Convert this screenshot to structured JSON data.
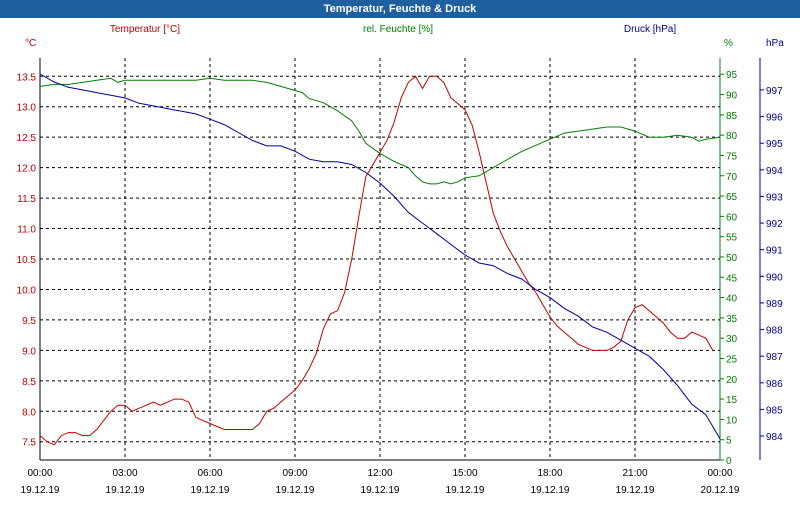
{
  "window": {
    "title": "Temperatur, Feuchte & Druck"
  },
  "colors": {
    "title_bar": "#1f5fa0",
    "temperature": "#c00000",
    "humidity": "#008000",
    "pressure": "#00009c",
    "grid": "#000000",
    "background": "#ffffff"
  },
  "chart_data": {
    "type": "line",
    "title": "Temperatur, Feuchte & Druck",
    "grid": true,
    "x_ticks": [
      {
        "time": "00:00",
        "date": "19.12.19"
      },
      {
        "time": "03:00",
        "date": "19.12.19"
      },
      {
        "time": "06:00",
        "date": "19.12.19"
      },
      {
        "time": "09:00",
        "date": "19.12.19"
      },
      {
        "time": "12:00",
        "date": "19.12.19"
      },
      {
        "time": "15:00",
        "date": "19.12.19"
      },
      {
        "time": "18:00",
        "date": "19.12.19"
      },
      {
        "time": "21:00",
        "date": "19.12.19"
      },
      {
        "time": "00:00",
        "date": "20.12.19"
      }
    ],
    "x_range": [
      "19.12.19 00:00",
      "20.12.19 00:00"
    ],
    "axes": {
      "temperature": {
        "label": "Temperatur [°C]",
        "unit": "°C",
        "range": [
          7.2,
          13.8
        ],
        "ticks": [
          "7.5",
          "8.0",
          "8.5",
          "9.0",
          "9.5",
          "10.0",
          "10.5",
          "11.0",
          "11.5",
          "12.0",
          "12.5",
          "13.0",
          "13.5"
        ]
      },
      "humidity": {
        "label": "rel. Feuchte [%]",
        "unit": "%",
        "range": [
          0,
          99
        ],
        "ticks": [
          "0",
          "5",
          "10",
          "15",
          "20",
          "25",
          "30",
          "35",
          "40",
          "45",
          "50",
          "55",
          "60",
          "65",
          "70",
          "75",
          "80",
          "85",
          "90",
          "95"
        ]
      },
      "pressure": {
        "label": "Druck [hPa]",
        "unit": "hPa",
        "range": [
          983.1,
          998.2
        ],
        "ticks": [
          "984",
          "985",
          "986",
          "987",
          "988",
          "989",
          "990",
          "991",
          "992",
          "993",
          "994",
          "995",
          "996",
          "997"
        ]
      }
    },
    "series": [
      {
        "name": "Temperatur [°C]",
        "axis": "temperature",
        "points": [
          [
            "00:00",
            7.6
          ],
          [
            "00:15",
            7.5
          ],
          [
            "00:30",
            7.45
          ],
          [
            "00:45",
            7.6
          ],
          [
            "01:00",
            7.65
          ],
          [
            "01:15",
            7.65
          ],
          [
            "01:30",
            7.6
          ],
          [
            "01:45",
            7.6
          ],
          [
            "02:00",
            7.7
          ],
          [
            "02:30",
            8.0
          ],
          [
            "02:45",
            8.1
          ],
          [
            "03:00",
            8.1
          ],
          [
            "03:15",
            8.0
          ],
          [
            "03:30",
            8.05
          ],
          [
            "03:45",
            8.1
          ],
          [
            "04:00",
            8.15
          ],
          [
            "04:15",
            8.1
          ],
          [
            "04:30",
            8.15
          ],
          [
            "04:45",
            8.2
          ],
          [
            "05:00",
            8.2
          ],
          [
            "05:15",
            8.15
          ],
          [
            "05:30",
            7.9
          ],
          [
            "05:45",
            7.85
          ],
          [
            "06:00",
            7.8
          ],
          [
            "06:15",
            7.75
          ],
          [
            "06:30",
            7.7
          ],
          [
            "06:45",
            7.7
          ],
          [
            "07:00",
            7.7
          ],
          [
            "07:15",
            7.7
          ],
          [
            "07:30",
            7.7
          ],
          [
            "07:45",
            7.8
          ],
          [
            "08:00",
            8.0
          ],
          [
            "08:15",
            8.05
          ],
          [
            "08:30",
            8.15
          ],
          [
            "08:45",
            8.25
          ],
          [
            "09:00",
            8.35
          ],
          [
            "09:15",
            8.5
          ],
          [
            "09:30",
            8.7
          ],
          [
            "09:45",
            8.95
          ],
          [
            "10:00",
            9.35
          ],
          [
            "10:15",
            9.6
          ],
          [
            "10:30",
            9.65
          ],
          [
            "10:45",
            9.95
          ],
          [
            "11:00",
            10.5
          ],
          [
            "11:15",
            11.2
          ],
          [
            "11:30",
            11.85
          ],
          [
            "11:45",
            12.05
          ],
          [
            "12:00",
            12.25
          ],
          [
            "12:15",
            12.45
          ],
          [
            "12:30",
            12.75
          ],
          [
            "12:45",
            13.15
          ],
          [
            "13:00",
            13.4
          ],
          [
            "13:15",
            13.5
          ],
          [
            "13:30",
            13.3
          ],
          [
            "13:45",
            13.5
          ],
          [
            "14:00",
            13.5
          ],
          [
            "14:15",
            13.4
          ],
          [
            "14:30",
            13.15
          ],
          [
            "14:45",
            13.05
          ],
          [
            "15:00",
            12.95
          ],
          [
            "15:15",
            12.7
          ],
          [
            "15:30",
            12.25
          ],
          [
            "15:45",
            11.75
          ],
          [
            "16:00",
            11.25
          ],
          [
            "16:15",
            10.95
          ],
          [
            "16:30",
            10.7
          ],
          [
            "16:45",
            10.5
          ],
          [
            "17:00",
            10.3
          ],
          [
            "17:15",
            10.1
          ],
          [
            "17:30",
            9.95
          ],
          [
            "17:45",
            9.75
          ],
          [
            "18:00",
            9.55
          ],
          [
            "18:15",
            9.4
          ],
          [
            "18:30",
            9.3
          ],
          [
            "18:45",
            9.2
          ],
          [
            "19:00",
            9.1
          ],
          [
            "19:15",
            9.05
          ],
          [
            "19:30",
            9.0
          ],
          [
            "19:45",
            9.0
          ],
          [
            "20:00",
            9.0
          ],
          [
            "20:15",
            9.05
          ],
          [
            "20:30",
            9.15
          ],
          [
            "20:45",
            9.5
          ],
          [
            "21:00",
            9.7
          ],
          [
            "21:15",
            9.75
          ],
          [
            "21:30",
            9.65
          ],
          [
            "21:45",
            9.55
          ],
          [
            "22:00",
            9.45
          ],
          [
            "22:15",
            9.3
          ],
          [
            "22:30",
            9.2
          ],
          [
            "22:45",
            9.2
          ],
          [
            "23:00",
            9.3
          ],
          [
            "23:15",
            9.25
          ],
          [
            "23:30",
            9.2
          ],
          [
            "23:45",
            9.0
          ]
        ]
      },
      {
        "name": "rel. Feuchte [%]",
        "axis": "humidity",
        "points": [
          [
            "00:00",
            92
          ],
          [
            "00:30",
            92.5
          ],
          [
            "01:00",
            92.5
          ],
          [
            "01:30",
            93
          ],
          [
            "02:00",
            93.5
          ],
          [
            "02:30",
            94
          ],
          [
            "02:45",
            93
          ],
          [
            "03:00",
            93.5
          ],
          [
            "03:30",
            93.5
          ],
          [
            "04:00",
            93.5
          ],
          [
            "04:30",
            93.5
          ],
          [
            "05:00",
            93.5
          ],
          [
            "05:30",
            93.5
          ],
          [
            "06:00",
            94
          ],
          [
            "06:30",
            93.5
          ],
          [
            "07:00",
            93.5
          ],
          [
            "07:30",
            93.5
          ],
          [
            "08:00",
            93
          ],
          [
            "08:30",
            92
          ],
          [
            "09:00",
            91
          ],
          [
            "09:15",
            90.5
          ],
          [
            "09:30",
            89
          ],
          [
            "10:00",
            88
          ],
          [
            "10:30",
            86
          ],
          [
            "11:00",
            83.5
          ],
          [
            "11:15",
            81
          ],
          [
            "11:30",
            78
          ],
          [
            "12:00",
            75.5
          ],
          [
            "12:30",
            73.5
          ],
          [
            "13:00",
            72
          ],
          [
            "13:15",
            70
          ],
          [
            "13:30",
            68.5
          ],
          [
            "13:45",
            68
          ],
          [
            "14:00",
            68
          ],
          [
            "14:15",
            68.5
          ],
          [
            "14:30",
            68
          ],
          [
            "14:45",
            68.5
          ],
          [
            "15:00",
            69.5
          ],
          [
            "15:30",
            70
          ],
          [
            "16:00",
            72
          ],
          [
            "16:30",
            74
          ],
          [
            "17:00",
            76
          ],
          [
            "17:30",
            77.5
          ],
          [
            "18:00",
            79
          ],
          [
            "18:30",
            80.5
          ],
          [
            "19:00",
            81
          ],
          [
            "19:30",
            81.5
          ],
          [
            "20:00",
            82
          ],
          [
            "20:30",
            82
          ],
          [
            "21:00",
            81
          ],
          [
            "21:30",
            79.5
          ],
          [
            "22:00",
            79.5
          ],
          [
            "22:30",
            80
          ],
          [
            "23:00",
            79.5
          ],
          [
            "23:15",
            78.5
          ],
          [
            "23:30",
            79
          ],
          [
            "24:00",
            79.5
          ]
        ]
      },
      {
        "name": "Druck [hPa]",
        "axis": "pressure",
        "points": [
          [
            "00:00",
            997.6
          ],
          [
            "00:30",
            997.3
          ],
          [
            "01:00",
            997.1
          ],
          [
            "01:30",
            997.0
          ],
          [
            "02:00",
            996.9
          ],
          [
            "02:30",
            996.8
          ],
          [
            "03:00",
            996.7
          ],
          [
            "03:30",
            996.5
          ],
          [
            "04:00",
            996.4
          ],
          [
            "04:30",
            996.3
          ],
          [
            "05:00",
            996.2
          ],
          [
            "05:30",
            996.1
          ],
          [
            "06:00",
            995.9
          ],
          [
            "06:30",
            995.7
          ],
          [
            "07:00",
            995.4
          ],
          [
            "07:30",
            995.1
          ],
          [
            "08:00",
            994.9
          ],
          [
            "08:30",
            994.9
          ],
          [
            "09:00",
            994.7
          ],
          [
            "09:30",
            994.4
          ],
          [
            "10:00",
            994.3
          ],
          [
            "10:30",
            994.3
          ],
          [
            "11:00",
            994.2
          ],
          [
            "11:30",
            993.9
          ],
          [
            "12:00",
            993.5
          ],
          [
            "12:30",
            993.0
          ],
          [
            "13:00",
            992.4
          ],
          [
            "13:30",
            992.0
          ],
          [
            "14:00",
            991.6
          ],
          [
            "14:30",
            991.2
          ],
          [
            "15:00",
            990.8
          ],
          [
            "15:30",
            990.5
          ],
          [
            "16:00",
            990.4
          ],
          [
            "16:30",
            990.1
          ],
          [
            "17:00",
            989.9
          ],
          [
            "17:30",
            989.5
          ],
          [
            "18:00",
            989.2
          ],
          [
            "18:30",
            988.8
          ],
          [
            "19:00",
            988.5
          ],
          [
            "19:30",
            988.1
          ],
          [
            "20:00",
            987.9
          ],
          [
            "20:30",
            987.6
          ],
          [
            "21:00",
            987.3
          ],
          [
            "21:30",
            987.0
          ],
          [
            "22:00",
            986.5
          ],
          [
            "22:30",
            985.9
          ],
          [
            "23:00",
            985.2
          ],
          [
            "23:30",
            984.8
          ],
          [
            "24:00",
            983.9
          ]
        ]
      }
    ]
  }
}
